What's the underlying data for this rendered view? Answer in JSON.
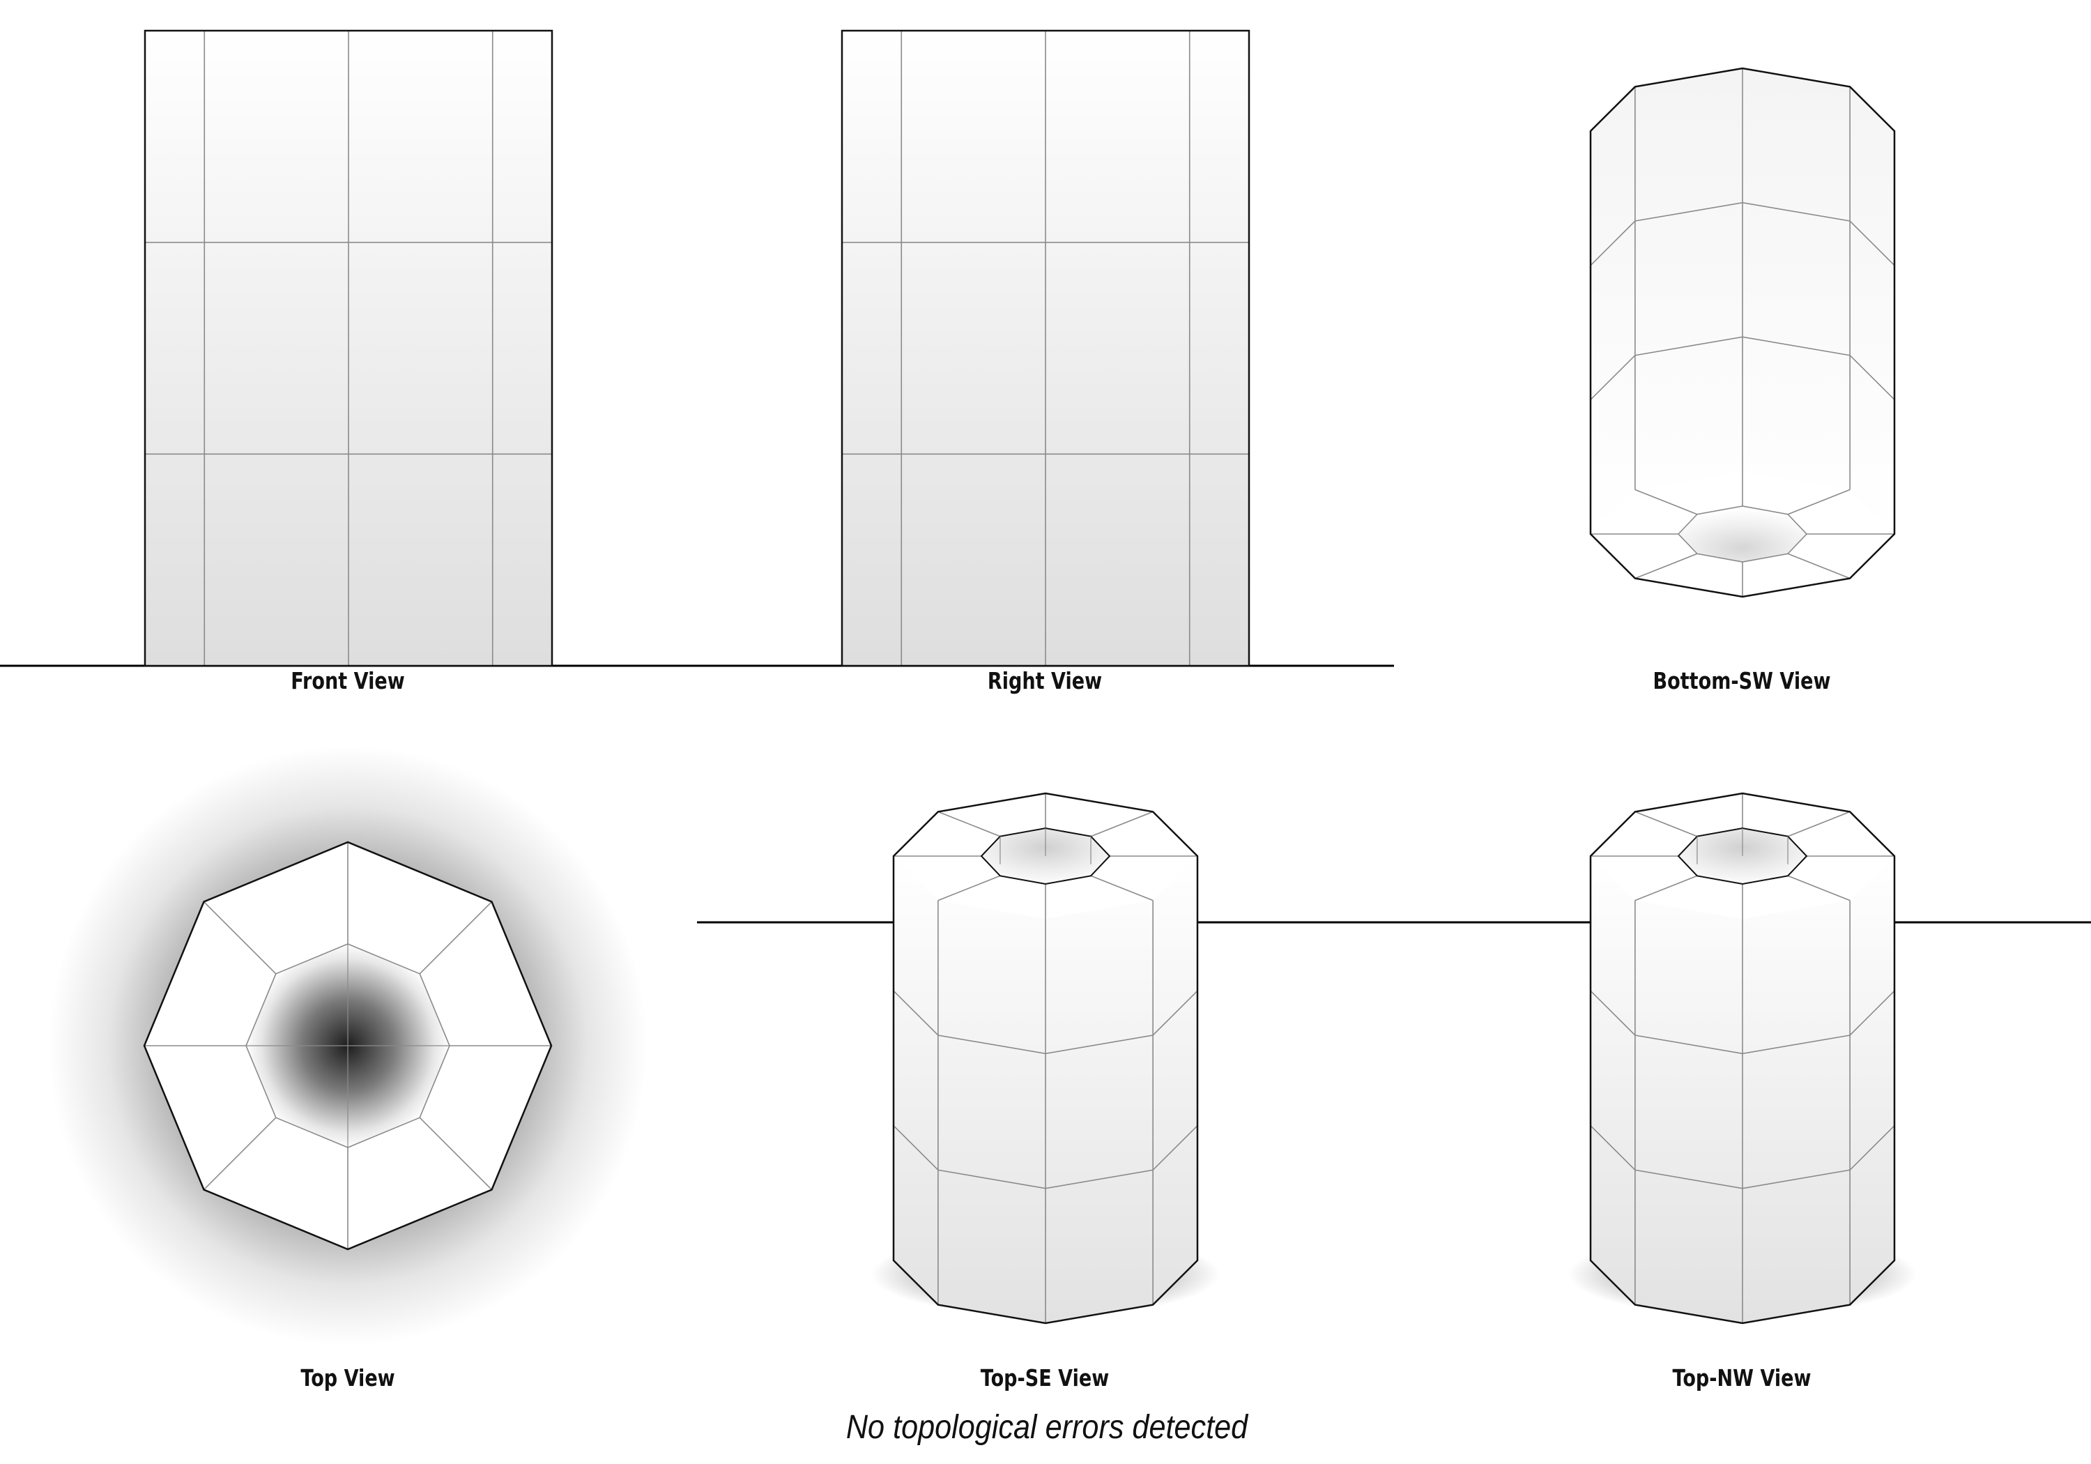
{
  "object": {
    "name": "octagonal hollow tube",
    "sides": 8,
    "height_segments": 3
  },
  "views": [
    {
      "id": "front",
      "label": "Front View"
    },
    {
      "id": "right",
      "label": "Right View"
    },
    {
      "id": "bottom-sw",
      "label": "Bottom-SW View"
    },
    {
      "id": "top",
      "label": "Top View"
    },
    {
      "id": "top-se",
      "label": "Top-SE View"
    },
    {
      "id": "top-nw",
      "label": "Top-NW View"
    }
  ],
  "status": "No topological errors detected",
  "colors": {
    "outline": "#111111",
    "mesh_edge": "#8a8a8a",
    "face_light": "#ffffff",
    "face_shade": "#dcdcdc",
    "ground_line": "#000000"
  }
}
